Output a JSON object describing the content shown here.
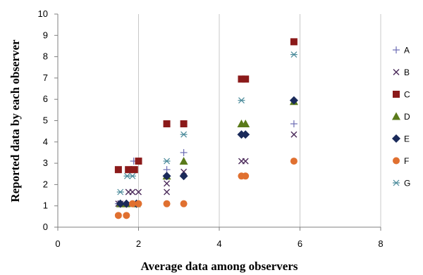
{
  "chart_data": {
    "type": "scatter",
    "title": "",
    "xlabel": "Average data among observers",
    "ylabel": "Reported data by each observer",
    "xlim": [
      0,
      8
    ],
    "ylim": [
      0,
      10
    ],
    "x_ticks": [
      "0",
      "2",
      "4",
      "6",
      "8"
    ],
    "y_ticks": [
      "0",
      "1",
      "2",
      "3",
      "4",
      "5",
      "6",
      "7",
      "8",
      "9",
      "10"
    ],
    "grid": "vertical",
    "legend_position": "right",
    "series": [
      {
        "name": "A",
        "marker": "plus",
        "color": "#6b6bb3",
        "points": [
          [
            1.5,
            1.1
          ],
          [
            1.55,
            1.1
          ],
          [
            1.8,
            2.7
          ],
          [
            1.88,
            3.1
          ],
          [
            2.7,
            2.7
          ],
          [
            3.12,
            3.5
          ],
          [
            4.55,
            4.35
          ],
          [
            4.65,
            4.35
          ],
          [
            5.85,
            4.85
          ]
        ]
      },
      {
        "name": "B",
        "marker": "x",
        "color": "#4b2a5a",
        "points": [
          [
            1.5,
            1.1
          ],
          [
            1.55,
            1.1
          ],
          [
            1.75,
            1.65
          ],
          [
            1.85,
            1.65
          ],
          [
            2.0,
            1.65
          ],
          [
            2.7,
            1.65
          ],
          [
            2.7,
            2.05
          ],
          [
            3.12,
            2.6
          ],
          [
            4.55,
            3.1
          ],
          [
            4.65,
            3.1
          ],
          [
            5.85,
            4.35
          ]
        ]
      },
      {
        "name": "C",
        "marker": "square",
        "color": "#8b1a1a",
        "points": [
          [
            1.5,
            2.7
          ],
          [
            1.75,
            2.7
          ],
          [
            1.9,
            2.7
          ],
          [
            2.0,
            3.1
          ],
          [
            2.7,
            4.85
          ],
          [
            3.12,
            4.85
          ],
          [
            4.55,
            6.95
          ],
          [
            4.65,
            6.95
          ],
          [
            5.85,
            8.7
          ]
        ]
      },
      {
        "name": "D",
        "marker": "triangle",
        "color": "#5a7a1a",
        "points": [
          [
            1.55,
            1.1
          ],
          [
            1.7,
            1.1
          ],
          [
            1.95,
            1.1
          ],
          [
            2.7,
            2.4
          ],
          [
            3.12,
            3.1
          ],
          [
            4.55,
            4.85
          ],
          [
            4.65,
            4.85
          ],
          [
            5.85,
            5.9
          ]
        ]
      },
      {
        "name": "E",
        "marker": "diamond",
        "color": "#1a2a5a",
        "points": [
          [
            1.55,
            1.1
          ],
          [
            1.7,
            1.1
          ],
          [
            1.95,
            1.1
          ],
          [
            2.7,
            2.4
          ],
          [
            3.12,
            2.4
          ],
          [
            4.55,
            4.35
          ],
          [
            4.65,
            4.35
          ],
          [
            5.85,
            5.95
          ]
        ]
      },
      {
        "name": "F",
        "marker": "circle",
        "color": "#e07030",
        "points": [
          [
            1.5,
            0.55
          ],
          [
            1.7,
            0.55
          ],
          [
            1.85,
            1.1
          ],
          [
            2.0,
            1.1
          ],
          [
            2.7,
            1.1
          ],
          [
            3.12,
            1.1
          ],
          [
            4.55,
            2.4
          ],
          [
            4.65,
            2.4
          ],
          [
            5.85,
            3.1
          ]
        ]
      },
      {
        "name": "G",
        "marker": "asterisk",
        "color": "#4a8a9a",
        "points": [
          [
            1.55,
            1.65
          ],
          [
            1.72,
            2.4
          ],
          [
            1.85,
            2.4
          ],
          [
            2.7,
            3.1
          ],
          [
            3.12,
            4.35
          ],
          [
            4.55,
            5.95
          ],
          [
            5.85,
            8.1
          ]
        ]
      }
    ]
  }
}
